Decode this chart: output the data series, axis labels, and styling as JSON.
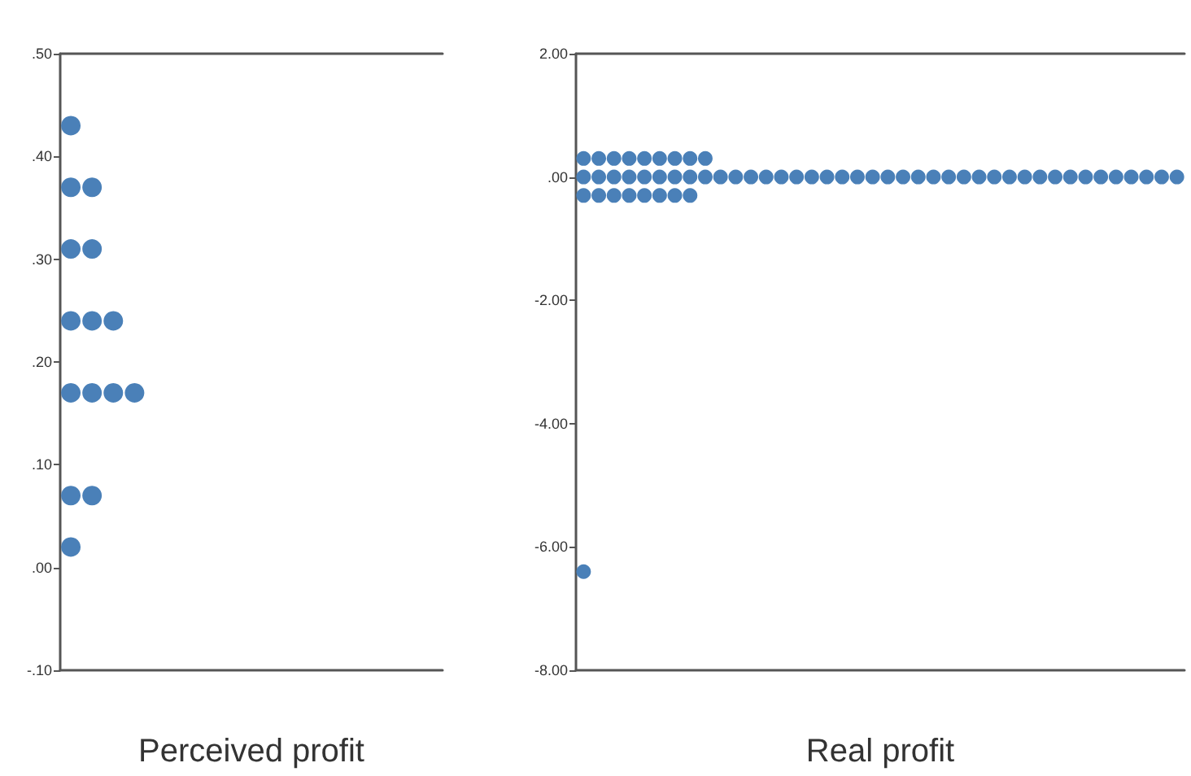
{
  "chart_data": [
    {
      "type": "scatter",
      "xlabel": "Perceived profit",
      "categories": [
        null,
        null,
        null,
        null,
        null,
        null,
        null,
        null,
        null,
        null,
        null,
        null,
        null,
        null,
        null,
        null,
        null,
        null
      ],
      "series": [
        {
          "color": "#4a80b8",
          "values": [
            0.43,
            null,
            null,
            null,
            null,
            null,
            null,
            null,
            null,
            null,
            null,
            null,
            null,
            null,
            null,
            null,
            null,
            null
          ]
        },
        {
          "color": "#4a80b8",
          "values": [
            0.37,
            0.37,
            null,
            null,
            null,
            null,
            null,
            null,
            null,
            null,
            null,
            null,
            null,
            null,
            null,
            null,
            null,
            null
          ]
        },
        {
          "color": "#4a80b8",
          "values": [
            0.31,
            0.31,
            null,
            null,
            null,
            null,
            null,
            null,
            null,
            null,
            null,
            null,
            null,
            null,
            null,
            null,
            null,
            null
          ]
        },
        {
          "color": "#4a80b8",
          "values": [
            0.24,
            0.24,
            0.24,
            null,
            null,
            null,
            null,
            null,
            null,
            null,
            null,
            null,
            null,
            null,
            null,
            null,
            null,
            null
          ]
        },
        {
          "color": "#4a80b8",
          "values": [
            0.17,
            0.17,
            0.17,
            0.17,
            null,
            null,
            null,
            null,
            null,
            null,
            null,
            null,
            null,
            null,
            null,
            null,
            null,
            null
          ]
        },
        {
          "color": "#4a80b8",
          "values": [
            0.07,
            0.07,
            null,
            null,
            null,
            null,
            null,
            null,
            null,
            null,
            null,
            null,
            null,
            null,
            null,
            null,
            null,
            null
          ]
        },
        {
          "color": "#4a80b8",
          "values": [
            0.02,
            null,
            null,
            null,
            null,
            null,
            null,
            null,
            null,
            null,
            null,
            null,
            null,
            null,
            null,
            null,
            null,
            null
          ]
        }
      ],
      "ylim": [
        -0.1,
        0.5
      ],
      "yticks": [
        {
          "value": -0.1,
          "label": "-.10"
        },
        {
          "value": 0,
          "label": ".00"
        },
        {
          "value": 0.1,
          "label": ".10"
        },
        {
          "value": 0.2,
          "label": ".20"
        },
        {
          "value": 0.3,
          "label": ".30"
        },
        {
          "value": 0.4,
          "label": ".40"
        },
        {
          "value": 0.5,
          "label": ".50"
        }
      ],
      "tick_labels": "y",
      "marker": "circle",
      "grid": false
    },
    {
      "type": "scatter",
      "xlabel": "Real profit",
      "categories": [
        null,
        null,
        null,
        null,
        null,
        null,
        null,
        null,
        null,
        null,
        null,
        null,
        null,
        null,
        null,
        null,
        null,
        null,
        null,
        null,
        null,
        null,
        null,
        null,
        null,
        null,
        null,
        null,
        null,
        null,
        null,
        null,
        null,
        null,
        null,
        null,
        null,
        null,
        null,
        null
      ],
      "series": [
        {
          "color": "#4a80b8",
          "values": [
            0.3,
            0.3,
            0.3,
            0.3,
            0.3,
            0.3,
            0.3,
            0.3,
            0.3,
            null,
            null,
            null,
            null,
            null,
            null,
            null,
            null,
            null,
            null,
            null,
            null,
            null,
            null,
            null,
            null,
            null,
            null,
            null,
            null,
            null,
            null,
            null,
            null,
            null,
            null,
            null,
            null,
            null,
            null,
            null
          ]
        },
        {
          "color": "#4a80b8",
          "values": [
            0,
            0,
            0,
            0,
            0,
            0,
            0,
            0,
            0,
            0,
            0,
            0,
            0,
            0,
            0,
            0,
            0,
            0,
            0,
            0,
            0,
            0,
            0,
            0,
            0,
            0,
            0,
            0,
            0,
            0,
            0,
            0,
            0,
            0,
            0,
            0,
            0,
            0,
            0,
            0
          ]
        },
        {
          "color": "#4a80b8",
          "values": [
            -0.3,
            -0.3,
            -0.3,
            -0.3,
            -0.3,
            -0.3,
            -0.3,
            -0.3,
            null,
            null,
            null,
            null,
            null,
            null,
            null,
            null,
            null,
            null,
            null,
            null,
            null,
            null,
            null,
            null,
            null,
            null,
            null,
            null,
            null,
            null,
            null,
            null,
            null,
            null,
            null,
            null,
            null,
            null,
            null,
            null
          ]
        },
        {
          "color": "#4a80b8",
          "values": [
            -6.4,
            null,
            null,
            null,
            null,
            null,
            null,
            null,
            null,
            null,
            null,
            null,
            null,
            null,
            null,
            null,
            null,
            null,
            null,
            null,
            null,
            null,
            null,
            null,
            null,
            null,
            null,
            null,
            null,
            null,
            null,
            null,
            null,
            null,
            null,
            null,
            null,
            null,
            null,
            null
          ]
        }
      ],
      "ylim": [
        -8,
        2
      ],
      "yticks": [
        {
          "value": -8,
          "label": "-8.00"
        },
        {
          "value": -6,
          "label": "-6.00"
        },
        {
          "value": -4,
          "label": "-4.00"
        },
        {
          "value": -2,
          "label": "-2.00"
        },
        {
          "value": 0,
          "label": ".00"
        },
        {
          "value": 2,
          "label": "2.00"
        }
      ],
      "tick_labels": "y",
      "marker": "circle",
      "grid": false
    }
  ]
}
